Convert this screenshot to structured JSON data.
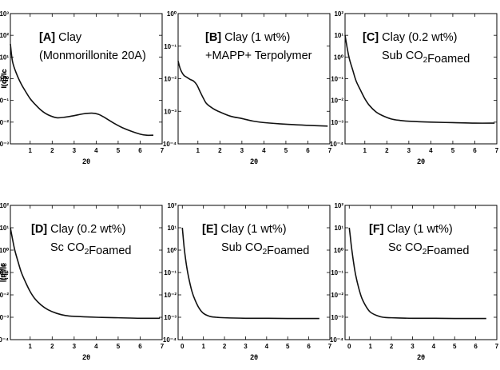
{
  "chart_data": [
    {
      "type": "line",
      "panel": "[A]",
      "title": [
        "Clay",
        "(Monmorillonite 20A)"
      ],
      "xlabel": "2θ",
      "ylabel": "I(q)/Ic",
      "xlim": [
        0.1,
        7
      ],
      "ylim_exp": [
        -3,
        3
      ],
      "yscale": "log",
      "xticks": [
        1,
        2,
        3,
        4,
        5,
        6,
        7
      ],
      "yticks": [
        "10³",
        "10²",
        "10¹",
        "10⁰",
        "10⁻¹",
        "10⁻²",
        "10⁻³"
      ],
      "series": [
        {
          "x": [
            0.1,
            0.2,
            0.4,
            0.6,
            0.8,
            1.0,
            1.2,
            1.5,
            1.8,
            2.2,
            2.6,
            3.0,
            3.4,
            3.8,
            4.1,
            4.4,
            4.8,
            5.2,
            5.6,
            6.0,
            6.3,
            6.6
          ],
          "y": [
            40,
            6,
            1.5,
            0.55,
            0.25,
            0.12,
            0.07,
            0.035,
            0.022,
            0.016,
            0.017,
            0.02,
            0.024,
            0.026,
            0.023,
            0.016,
            0.009,
            0.0055,
            0.0038,
            0.0028,
            0.0025,
            0.0025
          ]
        }
      ]
    },
    {
      "type": "line",
      "panel": "[B]",
      "title": [
        "Clay (1 wt%)",
        "+MAPP+ Terpolymer"
      ],
      "xlabel": "2θ",
      "ylabel": "I(q)/Ic",
      "xlim": [
        0.1,
        7
      ],
      "ylim_exp": [
        -4,
        0
      ],
      "yscale": "log",
      "xticks": [
        1,
        2,
        3,
        4,
        5,
        6,
        7
      ],
      "yticks": [
        "10⁰",
        "10⁻¹",
        "10⁻²",
        "10⁻³",
        "10⁻⁴"
      ],
      "series": [
        {
          "x": [
            0.1,
            0.2,
            0.35,
            0.5,
            0.65,
            0.8,
            0.95,
            1.1,
            1.25,
            1.4,
            1.7,
            2.0,
            2.5,
            3.0,
            3.5,
            4.0,
            5.0,
            6.0,
            6.9
          ],
          "y": [
            0.035,
            0.02,
            0.013,
            0.011,
            0.0095,
            0.0085,
            0.0065,
            0.004,
            0.0025,
            0.0017,
            0.0012,
            0.00095,
            0.0007,
            0.0006,
            0.0005,
            0.00045,
            0.0004,
            0.00037,
            0.00035
          ]
        }
      ]
    },
    {
      "type": "line",
      "panel": "[C]",
      "title": [
        "Clay (0.2 wt%)",
        "Sub CO₂Foamed"
      ],
      "xlabel": "2θ",
      "ylabel": "I(q)/Ic",
      "xlim": [
        0.1,
        7
      ],
      "ylim_exp": [
        -4,
        2
      ],
      "yscale": "log",
      "xticks": [
        1,
        2,
        3,
        4,
        5,
        6,
        7
      ],
      "yticks": [
        "10²",
        "10¹",
        "10⁰",
        "10⁻¹",
        "10⁻²",
        "10⁻³",
        "10⁻⁴"
      ],
      "series": [
        {
          "x": [
            0.1,
            0.2,
            0.3,
            0.45,
            0.6,
            0.8,
            1.0,
            1.2,
            1.5,
            1.8,
            2.2,
            2.6,
            3.0,
            4.0,
            5.0,
            6.0,
            6.9
          ],
          "y": [
            10,
            2.5,
            0.8,
            0.25,
            0.08,
            0.03,
            0.012,
            0.006,
            0.003,
            0.002,
            0.0014,
            0.0012,
            0.0011,
            0.001,
            0.00095,
            0.0009,
            0.0009
          ]
        }
      ]
    },
    {
      "type": "line",
      "panel": "[D]",
      "title": [
        "Clay (0.2 wt%)",
        "Sc CO₂Foamed"
      ],
      "xlabel": "2θ",
      "ylabel": "I(q)/Ic",
      "xlim": [
        0.1,
        7
      ],
      "ylim_exp": [
        -4,
        2
      ],
      "yscale": "log",
      "xticks": [
        1,
        2,
        3,
        4,
        5,
        6,
        7
      ],
      "yticks": [
        "10²",
        "10¹",
        "10⁰",
        "10⁻¹",
        "10⁻²",
        "10⁻³",
        "10⁻⁴"
      ],
      "series": [
        {
          "x": [
            0.1,
            0.2,
            0.3,
            0.45,
            0.6,
            0.8,
            1.0,
            1.2,
            1.5,
            1.8,
            2.2,
            2.6,
            3.0,
            4.0,
            5.0,
            6.0,
            6.9
          ],
          "y": [
            10,
            3,
            1,
            0.3,
            0.1,
            0.035,
            0.014,
            0.007,
            0.0035,
            0.0022,
            0.0015,
            0.0012,
            0.0011,
            0.001,
            0.00095,
            0.0009,
            0.0009
          ]
        }
      ]
    },
    {
      "type": "line",
      "panel": "[E]",
      "title": [
        "Clay (1 wt%)",
        "Sub CO₂Foamed"
      ],
      "xlabel": "2θ",
      "ylabel": "I(q)/Ic",
      "xlim": [
        -0.2,
        7
      ],
      "ylim_exp": [
        -4,
        2
      ],
      "yscale": "log",
      "xticks": [
        0,
        1,
        2,
        3,
        4,
        5,
        6,
        7
      ],
      "yticks": [
        "10²",
        "10¹",
        "10⁰",
        "10⁻¹",
        "10⁻²",
        "10⁻³",
        "10⁻⁴"
      ],
      "series": [
        {
          "x": [
            0.0,
            0.05,
            0.1,
            0.2,
            0.3,
            0.45,
            0.6,
            0.8,
            1.0,
            1.3,
            1.6,
            2.0,
            3.0,
            4.0,
            5.0,
            6.0,
            6.5
          ],
          "y": [
            10,
            3,
            1,
            0.2,
            0.06,
            0.015,
            0.006,
            0.0025,
            0.0015,
            0.0011,
            0.001,
            0.00095,
            0.0009,
            0.0009,
            0.00088,
            0.00088,
            0.00088
          ]
        }
      ]
    },
    {
      "type": "line",
      "panel": "[F]",
      "title": [
        "Clay (1 wt%)",
        "Sc CO₂Foamed"
      ],
      "xlabel": "2θ",
      "ylabel": "I(q)/Ic",
      "xlim": [
        -0.2,
        7
      ],
      "ylim_exp": [
        -4,
        2
      ],
      "yscale": "log",
      "xticks": [
        0,
        1,
        2,
        3,
        4,
        5,
        6,
        7
      ],
      "yticks": [
        "10²",
        "10¹",
        "10⁰",
        "10⁻¹",
        "10⁻²",
        "10⁻³",
        "10⁻⁴"
      ],
      "series": [
        {
          "x": [
            0.0,
            0.05,
            0.1,
            0.2,
            0.3,
            0.45,
            0.6,
            0.8,
            1.0,
            1.3,
            1.6,
            2.0,
            3.0,
            4.0,
            5.0,
            6.0,
            6.5
          ],
          "y": [
            10,
            4,
            1.5,
            0.3,
            0.08,
            0.02,
            0.007,
            0.003,
            0.0017,
            0.0012,
            0.001,
            0.00095,
            0.0009,
            0.0009,
            0.00088,
            0.00088,
            0.00088
          ]
        }
      ]
    }
  ]
}
